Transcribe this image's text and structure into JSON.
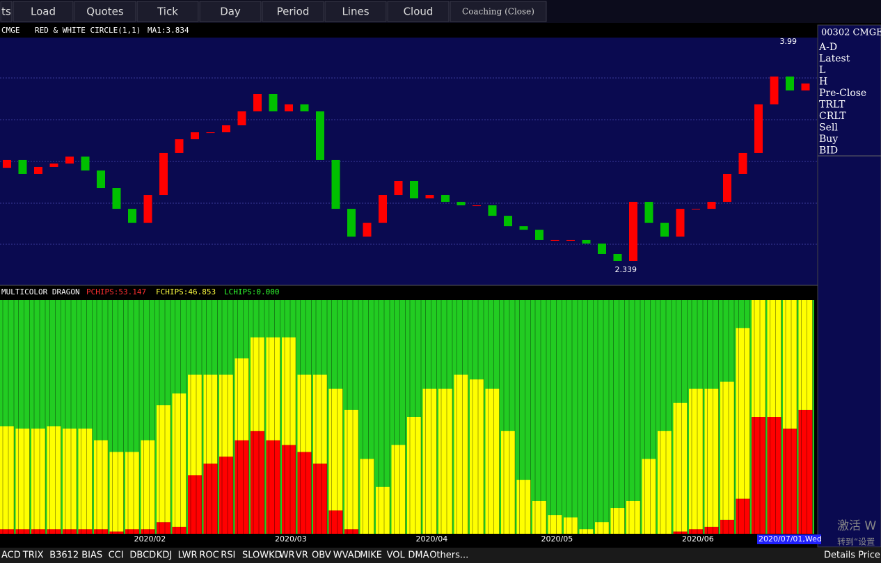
{
  "toolbar": [
    "ts",
    "Load",
    "Quotes",
    "Tick",
    "Day",
    "Period",
    "Lines",
    "Cloud",
    "Coaching (Close)"
  ],
  "price_header": {
    "symbol": "CMGE",
    "indicator": "RED & WHITE CIRCLE(1,1)",
    "ma": "MA1:3.834"
  },
  "chips_header": {
    "name": "MULTICOLOR DRAGON",
    "pchips": "PCHIPS:53.147",
    "fchips": "FCHIPS:46.853",
    "lchips": "LCHIPS:0.000"
  },
  "side_panel": {
    "title": "00302 CMGE",
    "items": [
      "A-D",
      "Latest",
      "L",
      "H",
      "Pre-Close",
      "TRLT",
      "CRLT",
      "Sell",
      "Buy",
      "BID"
    ]
  },
  "tabs": [
    "ACD",
    "TRIX",
    "B3612",
    "BIAS",
    "CCI",
    "DBCD",
    "KDJ",
    "LWR",
    "ROC",
    "RSI",
    "SLOWKD",
    "WR",
    "VR",
    "OBV",
    "WVAD",
    "MIKE",
    "VOL",
    "DMA",
    "Others..."
  ],
  "details": "Details Price",
  "watermark": [
    "激活 W",
    "转到“设置"
  ],
  "chart_data": [
    {
      "type": "candlestick",
      "max_label": 3.99,
      "min_label": 2.339,
      "categories": [
        null,
        null,
        null,
        null,
        null,
        null,
        null,
        null,
        null,
        "2020/02",
        null,
        null,
        null,
        null,
        null,
        null,
        null,
        null,
        "2020/03",
        null,
        null,
        null,
        null,
        null,
        null,
        null,
        null,
        "2020/04",
        null,
        null,
        null,
        null,
        null,
        null,
        null,
        "2020/05",
        null,
        null,
        null,
        null,
        null,
        null,
        null,
        null,
        "2020/06",
        null,
        null,
        null,
        "2020/07/01,Wed",
        null,
        null,
        null
      ],
      "open": [
        3.06,
        3.118,
        3.014,
        3.066,
        3.092,
        3.144,
        3.04,
        2.91,
        2.754,
        2.65,
        2.858,
        3.17,
        3.273,
        3.325,
        3.325,
        3.377,
        3.481,
        3.611,
        3.481,
        3.533,
        3.481,
        3.118,
        2.754,
        2.547,
        2.65,
        2.858,
        2.962,
        2.832,
        2.858,
        2.806,
        2.78,
        2.78,
        2.702,
        2.624,
        2.598,
        2.521,
        2.521,
        2.521,
        2.495,
        2.417,
        2.365,
        2.806,
        2.65,
        2.547,
        2.754,
        2.754,
        2.806,
        3.014,
        3.17,
        3.533,
        3.741,
        3.637
      ],
      "close": [
        3.118,
        3.014,
        3.066,
        3.092,
        3.144,
        3.04,
        2.91,
        2.754,
        2.65,
        2.858,
        3.17,
        3.273,
        3.325,
        3.325,
        3.377,
        3.481,
        3.611,
        3.481,
        3.533,
        3.481,
        3.118,
        2.754,
        2.547,
        2.65,
        2.858,
        2.962,
        2.832,
        2.858,
        2.806,
        2.78,
        2.78,
        2.702,
        2.624,
        2.598,
        2.521,
        2.521,
        2.521,
        2.495,
        2.417,
        2.365,
        2.806,
        2.65,
        2.547,
        2.754,
        2.754,
        2.806,
        3.014,
        3.17,
        3.533,
        3.741,
        3.637,
        3.689
      ],
      "up_color": "#ff0000",
      "down_color": "#00c000"
    },
    {
      "type": "stacked_bar",
      "ylim": [
        0,
        100
      ],
      "series": [
        {
          "name": "PCHIPS",
          "color": "#ff0000",
          "values": [
            2,
            2,
            2,
            2,
            2,
            2,
            2,
            1,
            2,
            2,
            5,
            3,
            25,
            30,
            33,
            40,
            44,
            40,
            38,
            35,
            30,
            10,
            2,
            0,
            0,
            0,
            0,
            0,
            0,
            0,
            0,
            0,
            0,
            0,
            0,
            0,
            0,
            0,
            0,
            0,
            0,
            0,
            0,
            1,
            2,
            3,
            6,
            15,
            50,
            50,
            45,
            53
          ]
        },
        {
          "name": "FCHIPS",
          "color": "#ffff00",
          "values": [
            44,
            43,
            43,
            44,
            43,
            43,
            38,
            34,
            33,
            38,
            50,
            57,
            43,
            38,
            35,
            35,
            40,
            44,
            46,
            33,
            38,
            52,
            51,
            32,
            20,
            38,
            50,
            62,
            62,
            68,
            66,
            62,
            44,
            23,
            14,
            8,
            7,
            2,
            5,
            11,
            14,
            32,
            44,
            55,
            60,
            59,
            59,
            73,
            50,
            50,
            55,
            47
          ]
        }
      ],
      "rest_color": "#22cc22"
    }
  ]
}
